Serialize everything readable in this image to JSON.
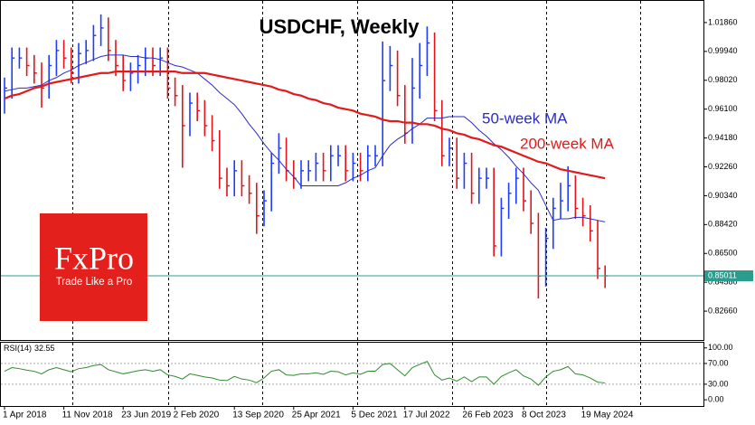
{
  "chart_data": {
    "type": "ohlc",
    "title": "USDCHF, Weekly",
    "categories": [
      "1 Apr 2018",
      null,
      null,
      null,
      null,
      null,
      null,
      null,
      "11 Nov 2018",
      null,
      null,
      null,
      null,
      null,
      null,
      null,
      "23 Jun 2019",
      null,
      null,
      null,
      null,
      null,
      null,
      "2 Feb 2020",
      null,
      null,
      null,
      null,
      null,
      null,
      null,
      "13 Sep 2020",
      null,
      null,
      null,
      null,
      null,
      null,
      null,
      "25 Apr 2021",
      null,
      null,
      null,
      null,
      null,
      null,
      null,
      "5 Dec 2021",
      null,
      null,
      null,
      null,
      null,
      null,
      "17 Jul 2022",
      null,
      null,
      null,
      null,
      null,
      null,
      null,
      "26 Feb 2023",
      null,
      null,
      null,
      null,
      null,
      null,
      null,
      "8 Oct 2023",
      null,
      null,
      null,
      null,
      null,
      null,
      null,
      "19 May 2024",
      null,
      null,
      null
    ],
    "high": [
      0.982,
      1.002,
      1.002,
      1.002,
      0.997,
      0.992,
      0.997,
      1.007,
      1.007,
      1.002,
      1.005,
      1.007,
      1.017,
      1.024,
      1.022,
      1.007,
      0.997,
      0.992,
      0.997,
      1.002,
      1.002,
      1.002,
      1.002,
      0.982,
      0.977,
      0.972,
      0.972,
      0.967,
      0.957,
      0.947,
      0.922,
      0.927,
      0.927,
      0.917,
      0.912,
      0.907,
      0.932,
      0.945,
      0.942,
      0.927,
      0.927,
      0.927,
      0.932,
      0.932,
      0.937,
      0.937,
      0.937,
      0.932,
      0.932,
      0.937,
      0.937,
      1.006,
      1.003,
      1.0,
      0.977,
      0.995,
      1.005,
      1.016,
      1.012,
      0.967,
      0.942,
      0.942,
      0.932,
      0.932,
      0.922,
      0.922,
      0.922,
      0.902,
      0.912,
      0.922,
      0.922,
      0.907,
      0.892,
      0.882,
      0.902,
      0.912,
      0.923,
      0.917,
      0.902,
      0.897,
      0.887,
      0.857
    ],
    "low": [
      0.958,
      0.968,
      0.988,
      0.983,
      0.978,
      0.962,
      0.968,
      0.983,
      0.988,
      0.978,
      0.978,
      0.991,
      0.993,
      1.003,
      0.993,
      0.983,
      0.973,
      0.973,
      0.978,
      0.983,
      0.983,
      0.983,
      0.968,
      0.963,
      0.922,
      0.943,
      0.953,
      0.943,
      0.933,
      0.908,
      0.903,
      0.903,
      0.903,
      0.898,
      0.878,
      0.883,
      0.893,
      0.918,
      0.913,
      0.908,
      0.908,
      0.913,
      0.913,
      0.913,
      0.913,
      0.923,
      0.913,
      0.913,
      0.913,
      0.913,
      0.923,
      0.923,
      0.973,
      0.963,
      0.938,
      0.938,
      0.968,
      0.983,
      0.953,
      0.923,
      0.923,
      0.908,
      0.908,
      0.898,
      0.898,
      0.908,
      0.863,
      0.863,
      0.888,
      0.898,
      0.893,
      0.878,
      0.835,
      0.843,
      0.868,
      0.888,
      0.893,
      0.888,
      0.883,
      0.873,
      0.848,
      0.842
    ],
    "close": [
      0.975,
      0.995,
      0.995,
      0.99,
      0.985,
      0.975,
      0.99,
      1.0,
      0.995,
      0.985,
      0.998,
      1.0,
      1.01,
      1.015,
      1.0,
      0.99,
      0.98,
      0.985,
      0.99,
      0.995,
      0.99,
      0.995,
      0.975,
      0.97,
      0.95,
      0.965,
      0.96,
      0.95,
      0.94,
      0.915,
      0.91,
      0.92,
      0.91,
      0.905,
      0.89,
      0.9,
      0.925,
      0.935,
      0.92,
      0.915,
      0.92,
      0.92,
      0.925,
      0.92,
      0.93,
      0.93,
      0.92,
      0.925,
      0.92,
      0.93,
      0.93,
      0.98,
      0.99,
      0.97,
      0.945,
      0.975,
      0.99,
      1.005,
      0.96,
      0.93,
      0.935,
      0.915,
      0.925,
      0.905,
      0.915,
      0.915,
      0.87,
      0.895,
      0.905,
      0.915,
      0.9,
      0.885,
      0.85,
      0.875,
      0.895,
      0.9,
      0.91,
      0.895,
      0.89,
      0.88,
      0.855,
      0.85011
    ],
    "up_color": "#1f3cff",
    "down_color": "#e3141c",
    "last_price_color": "#2a9d8f",
    "ylim": [
      0.8074,
      1.033
    ],
    "yticks": [
      {
        "value": 0.8266,
        "label": "0.82660"
      },
      {
        "value": 0.8458,
        "label": "0.84580"
      },
      {
        "value": 0.865,
        "label": "0.86500"
      },
      {
        "value": 0.8842,
        "label": "0.88420"
      },
      {
        "value": 0.9034,
        "label": "0.90340"
      },
      {
        "value": 0.9226,
        "label": "0.92260"
      },
      {
        "value": 0.9418,
        "label": "0.94180"
      },
      {
        "value": 0.961,
        "label": "0.96100"
      },
      {
        "value": 0.9802,
        "label": "0.98020"
      },
      {
        "value": 0.9994,
        "label": "0.99940"
      },
      {
        "value": 1.0186,
        "label": "1.01860"
      }
    ],
    "series": [
      {
        "name": "50-week MA",
        "color": "#2b2bc4",
        "values": [
          0.973,
          0.974,
          0.975,
          0.975,
          0.976,
          0.977,
          0.98,
          0.982,
          0.985,
          0.987,
          0.99,
          0.992,
          0.994,
          0.996,
          0.997,
          0.997,
          0.997,
          0.996,
          0.996,
          0.995,
          0.995,
          0.994,
          0.992,
          0.99,
          0.989,
          0.987,
          0.985,
          0.981,
          0.977,
          0.972,
          0.968,
          0.964,
          0.958,
          0.951,
          0.945,
          0.938,
          0.932,
          0.927,
          0.921,
          0.916,
          0.91,
          0.91,
          0.91,
          0.91,
          0.91,
          0.91,
          0.912,
          0.915,
          0.917,
          0.92,
          0.922,
          0.93,
          0.937,
          0.941,
          0.944,
          0.948,
          0.951,
          0.955,
          0.955,
          0.955,
          0.956,
          0.956,
          0.956,
          0.952,
          0.947,
          0.943,
          0.938,
          0.934,
          0.929,
          0.923,
          0.918,
          0.912,
          0.907,
          0.897,
          0.887,
          0.888,
          0.888,
          0.889,
          0.889,
          0.888,
          0.887,
          0.886
        ]
      },
      {
        "name": "200-week MA",
        "color": "#e31a1a",
        "values": [
          0.968,
          0.97,
          0.971,
          0.973,
          0.975,
          0.976,
          0.978,
          0.979,
          0.98,
          0.981,
          0.982,
          0.983,
          0.984,
          0.985,
          0.985,
          0.986,
          0.986,
          0.986,
          0.986,
          0.986,
          0.986,
          0.986,
          0.986,
          0.986,
          0.985,
          0.985,
          0.985,
          0.985,
          0.984,
          0.983,
          0.982,
          0.981,
          0.98,
          0.979,
          0.978,
          0.977,
          0.976,
          0.974,
          0.973,
          0.971,
          0.97,
          0.968,
          0.967,
          0.965,
          0.964,
          0.962,
          0.961,
          0.96,
          0.958,
          0.957,
          0.956,
          0.954,
          0.953,
          0.953,
          0.952,
          0.952,
          0.951,
          0.951,
          0.95,
          0.948,
          0.947,
          0.945,
          0.944,
          0.942,
          0.941,
          0.939,
          0.937,
          0.936,
          0.934,
          0.932,
          0.93,
          0.928,
          0.926,
          0.925,
          0.923,
          0.921,
          0.92,
          0.919,
          0.918,
          0.917,
          0.916,
          0.915
        ]
      }
    ],
    "rsi": {
      "label": "RSI(14)",
      "color": "#2e8b2e",
      "values": [
        55,
        62,
        60,
        57,
        55,
        50,
        58,
        62,
        58,
        54,
        60,
        62,
        66,
        68,
        58,
        54,
        50,
        53,
        56,
        58,
        55,
        58,
        48,
        45,
        40,
        50,
        47,
        44,
        42,
        38,
        37,
        45,
        40,
        38,
        33,
        42,
        55,
        58,
        48,
        47,
        50,
        50,
        52,
        49,
        55,
        54,
        48,
        52,
        49,
        55,
        55,
        68,
        70,
        58,
        46,
        62,
        68,
        74,
        48,
        38,
        42,
        36,
        44,
        35,
        44,
        44,
        30,
        45,
        52,
        58,
        46,
        40,
        28,
        44,
        55,
        58,
        64,
        50,
        48,
        42,
        34,
        32.55
      ],
      "ylim": [
        -12,
        110
      ],
      "yticks": [
        {
          "value": 0,
          "label": "0.00"
        },
        {
          "value": 30,
          "label": "30.00"
        },
        {
          "value": 70,
          "label": "70.00"
        },
        {
          "value": 100,
          "label": "100.00"
        }
      ]
    }
  },
  "logo": {
    "brand": "FxPro",
    "tagline": "Trade Like a Pro"
  }
}
